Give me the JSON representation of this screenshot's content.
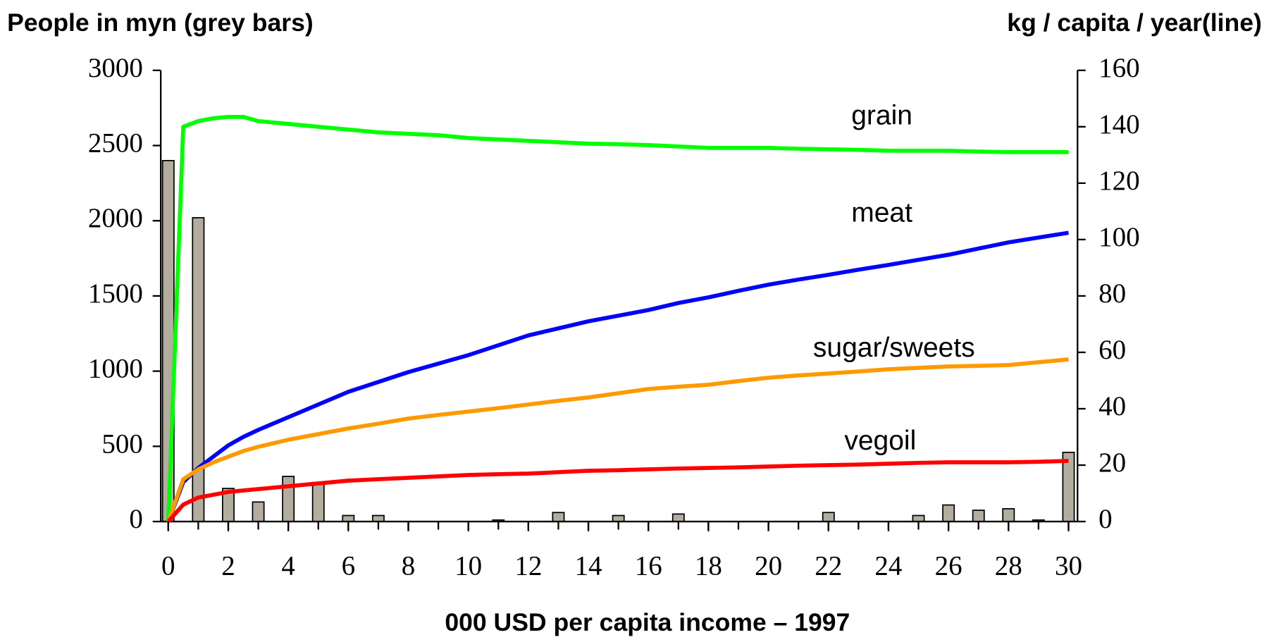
{
  "chart_data": {
    "type": "bar-line",
    "ylabel": "People in myn (grey bars)",
    "y2label": "kg / capita /  year(line)",
    "xlabel": "000 USD per capita income – 1997",
    "xlim": [
      -0.25,
      30.3
    ],
    "xticks": [
      0,
      2,
      4,
      6,
      8,
      10,
      12,
      14,
      16,
      18,
      20,
      22,
      24,
      26,
      28,
      30
    ],
    "ylim": [
      0,
      3000
    ],
    "yticks": [
      0,
      500,
      1000,
      1500,
      2000,
      2500,
      3000
    ],
    "y2lim": [
      0,
      160
    ],
    "y2ticks": [
      0,
      20,
      40,
      60,
      80,
      100,
      120,
      140,
      160
    ],
    "bars": {
      "color": "#b3ad9f",
      "x": [
        0,
        1,
        2,
        3,
        4,
        5,
        6,
        7,
        8,
        9,
        10,
        11,
        12,
        13,
        14,
        15,
        16,
        17,
        18,
        19,
        20,
        21,
        22,
        23,
        24,
        25,
        26,
        27,
        28,
        29,
        30
      ],
      "values": [
        2400,
        2020,
        220,
        130,
        300,
        260,
        40,
        40,
        0,
        0,
        0,
        10,
        0,
        60,
        0,
        40,
        0,
        50,
        0,
        0,
        0,
        0,
        60,
        0,
        0,
        40,
        110,
        75,
        85,
        10,
        460
      ]
    },
    "x": [
      0,
      0.5,
      1,
      1.5,
      2,
      2.5,
      3,
      4,
      5,
      6,
      7,
      8,
      9,
      10,
      11,
      12,
      13,
      14,
      15,
      16,
      17,
      18,
      19,
      20,
      21,
      22,
      23,
      24,
      25,
      26,
      27,
      28,
      29,
      30
    ],
    "series": [
      {
        "name": "grain",
        "color": "#00ff00",
        "axis": "y2",
        "values": [
          0,
          140,
          142,
          143,
          143.5,
          143.5,
          142,
          141,
          140,
          139,
          138,
          137.5,
          137,
          136,
          135.5,
          135,
          134.5,
          134,
          133.8,
          133.5,
          133,
          132.5,
          132.5,
          132.5,
          132.2,
          132,
          131.8,
          131.5,
          131.5,
          131.5,
          131.2,
          131,
          131,
          131
        ]
      },
      {
        "name": "meat",
        "color": "#0000ff",
        "axis": "y2",
        "values": [
          0,
          14,
          19,
          23,
          27,
          30,
          32.5,
          37,
          41.5,
          46,
          49.5,
          53,
          56,
          59,
          62.5,
          66,
          68.5,
          71,
          73,
          75,
          77.5,
          79.5,
          81.8,
          84,
          85.8,
          87.5,
          89.3,
          91,
          92.8,
          94.6,
          96.8,
          99,
          100.7,
          102.4
        ]
      },
      {
        "name": "sugar/sweets",
        "color": "#ff9900",
        "axis": "y2",
        "values": [
          0,
          15,
          18.5,
          21,
          23,
          25,
          26.5,
          29,
          31,
          33,
          34.7,
          36.5,
          37.8,
          39,
          40.2,
          41.5,
          42.8,
          44,
          45.5,
          47,
          47.8,
          48.5,
          49.8,
          51,
          51.8,
          52.5,
          53.2,
          54,
          54.5,
          55,
          55.2,
          55.5,
          56.5,
          57.5
        ]
      },
      {
        "name": "vegoil",
        "color": "#ff0000",
        "axis": "y2",
        "values": [
          0,
          6,
          8.5,
          9.5,
          10.5,
          11,
          11.5,
          12.5,
          13.5,
          14.5,
          15,
          15.5,
          16,
          16.5,
          16.8,
          17,
          17.5,
          18,
          18.2,
          18.5,
          18.8,
          19,
          19.2,
          19.5,
          19.8,
          20,
          20.2,
          20.5,
          20.8,
          21,
          21,
          21,
          21.2,
          21.5
        ]
      }
    ]
  }
}
